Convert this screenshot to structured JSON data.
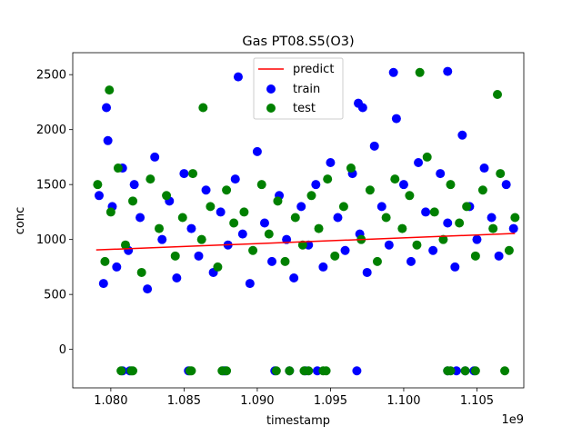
{
  "chart_data": {
    "type": "scatter",
    "title": "Gas PT08.S5(O3)",
    "xlabel": "timestamp",
    "ylabel": "conc",
    "x_offset_label": "1e9",
    "xlim": [
      1.0774,
      1.1082
    ],
    "ylim": [
      -350,
      2700
    ],
    "x_ticks": [
      1.08,
      1.085,
      1.09,
      1.095,
      1.1,
      1.105
    ],
    "x_tick_labels": [
      "1.080",
      "1.085",
      "1.090",
      "1.095",
      "1.100",
      "1.105"
    ],
    "y_ticks": [
      0,
      500,
      1000,
      1500,
      2000,
      2500
    ],
    "y_tick_labels": [
      "0",
      "500",
      "1000",
      "1500",
      "2000",
      "2500"
    ],
    "grid": false,
    "legend_position": "top-center",
    "series": [
      {
        "name": "predict",
        "kind": "line",
        "color": "#ff0000",
        "x": [
          1.079,
          1.1076
        ],
        "y": [
          905,
          1055
        ]
      },
      {
        "name": "train",
        "kind": "scatter",
        "color": "#0000ff",
        "x": [
          1.0792,
          1.0795,
          1.0798,
          1.0801,
          1.0804,
          1.0808,
          1.0812,
          1.0816,
          1.082,
          1.0825,
          1.083,
          1.0835,
          1.084,
          1.0845,
          1.085,
          1.0855,
          1.086,
          1.0865,
          1.087,
          1.0875,
          1.088,
          1.0885,
          1.089,
          1.0895,
          1.09,
          1.0905,
          1.091,
          1.0915,
          1.092,
          1.0925,
          1.093,
          1.0935,
          1.094,
          1.0945,
          1.095,
          1.0955,
          1.096,
          1.0965,
          1.097,
          1.0975,
          1.098,
          1.0985,
          1.099,
          1.0995,
          1.1,
          1.1005,
          1.101,
          1.1015,
          1.102,
          1.1025,
          1.103,
          1.1035,
          1.104,
          1.1045,
          1.105,
          1.1055,
          1.106,
          1.1065,
          1.107,
          1.1075,
          1.0887,
          1.0993,
          1.103,
          1.0969,
          1.0972,
          1.0797,
          1.11,
          1.0808,
          1.0813,
          1.0853,
          1.0877,
          1.0878,
          1.0912,
          1.0922,
          1.0933,
          1.0941,
          1.0968,
          1.103,
          1.1036,
          1.1042,
          1.1048
        ],
        "y": [
          1400,
          600,
          1900,
          1300,
          750,
          1650,
          900,
          1500,
          1200,
          550,
          1750,
          1000,
          1350,
          650,
          1600,
          1100,
          850,
          1450,
          700,
          1250,
          950,
          1550,
          1050,
          600,
          1800,
          1150,
          800,
          1400,
          1000,
          650,
          1300,
          950,
          1500,
          750,
          1700,
          1200,
          900,
          1600,
          1050,
          700,
          1850,
          1300,
          950,
          2100,
          1500,
          800,
          1700,
          1250,
          900,
          1600,
          1150,
          750,
          1950,
          1300,
          1000,
          1650,
          1200,
          850,
          1500,
          1100,
          2480,
          2520,
          2530,
          2240,
          2200,
          2200,
          2450,
          -195,
          -195,
          -195,
          -195,
          -195,
          -195,
          -195,
          -195,
          -195,
          -195,
          -195,
          -195,
          -195,
          -195
        ]
      },
      {
        "name": "test",
        "kind": "scatter",
        "color": "#008000",
        "x": [
          1.0791,
          1.0796,
          1.08,
          1.0805,
          1.081,
          1.0815,
          1.0821,
          1.0827,
          1.0833,
          1.0838,
          1.0844,
          1.0849,
          1.0856,
          1.0862,
          1.0868,
          1.0873,
          1.0879,
          1.0884,
          1.0891,
          1.0897,
          1.0903,
          1.0908,
          1.0914,
          1.0919,
          1.0926,
          1.0931,
          1.0937,
          1.0942,
          1.0948,
          1.0953,
          1.0959,
          1.0964,
          1.0971,
          1.0977,
          1.0982,
          1.0988,
          1.0994,
          1.0999,
          1.1004,
          1.1009,
          1.1016,
          1.1021,
          1.1027,
          1.1032,
          1.1038,
          1.1043,
          1.1049,
          1.1054,
          1.1061,
          1.1066,
          1.1072,
          1.1076,
          1.0799,
          1.0863,
          1.1011,
          1.1064,
          1.0807,
          1.0814,
          1.0815,
          1.0854,
          1.0855,
          1.0876,
          1.0879,
          1.0913,
          1.0922,
          1.0932,
          1.0935,
          1.0945,
          1.0947,
          1.103,
          1.1032,
          1.1042,
          1.1049,
          1.1069
        ],
        "y": [
          1500,
          800,
          1250,
          1650,
          950,
          1350,
          700,
          1550,
          1100,
          1400,
          850,
          1200,
          1600,
          1000,
          1300,
          750,
          1450,
          1150,
          1250,
          900,
          1500,
          1050,
          1350,
          800,
          1200,
          950,
          1400,
          1100,
          1550,
          850,
          1300,
          1650,
          1000,
          1450,
          800,
          1200,
          1550,
          1100,
          1400,
          950,
          1750,
          1250,
          1000,
          1500,
          1150,
          1300,
          850,
          1450,
          1100,
          1600,
          900,
          1200,
          2360,
          2200,
          2520,
          2320,
          -195,
          -195,
          -195,
          -195,
          -195,
          -195,
          -195,
          -195,
          -195,
          -195,
          -195,
          -195,
          -195,
          -195,
          -195,
          -195,
          -195,
          -195
        ]
      }
    ]
  }
}
